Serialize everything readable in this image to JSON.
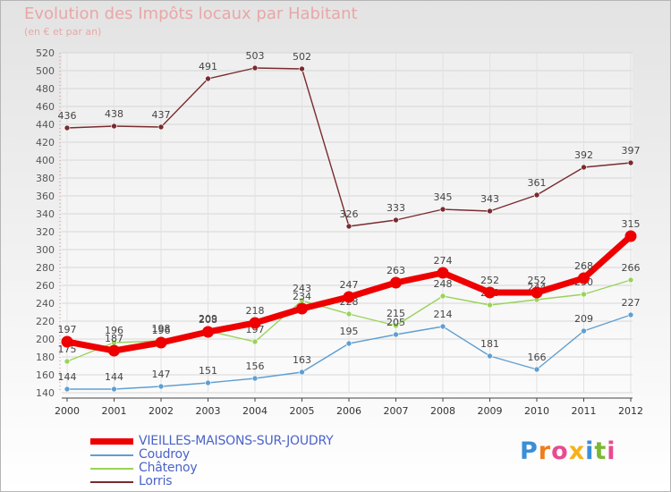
{
  "title": "Evolution des Impôts locaux par Habitant",
  "subtitle": "(en € et par an)",
  "logo": {
    "letters": [
      "P",
      "r",
      "o",
      "x",
      "i",
      "t",
      "i"
    ],
    "colors": [
      "#3a8fd6",
      "#f07d1a",
      "#e94a8f",
      "#f6b21a",
      "#3a8fd6",
      "#7ab833",
      "#e94a8f"
    ]
  },
  "chart_data": {
    "type": "line",
    "title": "Evolution des Impôts locaux par Habitant",
    "subtitle": "(en € et par an)",
    "xlabel": "",
    "ylabel": "",
    "x": [
      "2000",
      "2001",
      "2002",
      "2003",
      "2004",
      "2005",
      "2006",
      "2007",
      "2008",
      "2009",
      "2010",
      "2011",
      "2012"
    ],
    "ylim": [
      140,
      520
    ],
    "yticks": [
      140,
      160,
      180,
      200,
      220,
      240,
      260,
      280,
      300,
      320,
      340,
      360,
      380,
      400,
      420,
      440,
      460,
      480,
      500,
      520
    ],
    "grid": true,
    "legend_position": "bottom-left",
    "series": [
      {
        "name": "Lorris",
        "color": "#7a2a2f",
        "values": [
          436,
          438,
          437,
          491,
          503,
          502,
          326,
          333,
          345,
          343,
          361,
          392,
          397
        ],
        "labels": [
          "436",
          "438",
          "437",
          "491",
          "503",
          "502",
          "326",
          "333",
          "345",
          "343",
          "361",
          "392",
          "397"
        ]
      },
      {
        "name": "Châtenoy",
        "color": "#99d35a",
        "values": [
          175,
          196,
          198,
          209,
          197,
          243,
          228,
          215,
          248,
          238,
          244,
          250,
          266
        ],
        "labels": [
          "175",
          "196",
          "198",
          "209",
          "197",
          "243",
          "228",
          "215",
          "248",
          "238",
          "244",
          "250",
          "266"
        ]
      },
      {
        "name": "Coudroy",
        "color": "#5f9fd2",
        "values": [
          144,
          144,
          147,
          151,
          156,
          163,
          195,
          205,
          214,
          181,
          166,
          209,
          227
        ],
        "labels": [
          "144",
          "144",
          "147",
          "151",
          "156",
          "163",
          "195",
          "205",
          "214",
          "181",
          "166",
          "209",
          "227"
        ]
      },
      {
        "name": "VIEILLES-MAISONS-SUR-JOUDRY",
        "color": "#ee0000",
        "values": [
          197,
          187,
          196,
          208,
          218,
          234,
          247,
          263,
          274,
          252,
          252,
          268,
          315
        ],
        "labels": [
          "197",
          "187",
          "196",
          "208",
          "218",
          "234",
          "247",
          "263",
          "274",
          "252",
          "252",
          "268",
          "315"
        ]
      }
    ],
    "legend": [
      {
        "name": "VIEILLES-MAISONS-SUR-JOUDRY",
        "color": "#ee0000",
        "thick": true
      },
      {
        "name": "Coudroy",
        "color": "#5f9fd2",
        "thick": false
      },
      {
        "name": "Châtenoy",
        "color": "#99d35a",
        "thick": false
      },
      {
        "name": "Lorris",
        "color": "#7a2a2f",
        "thick": false
      }
    ]
  }
}
